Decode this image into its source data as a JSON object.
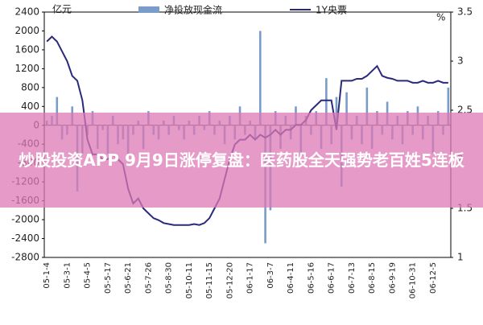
{
  "chart_data": {
    "type": "combo",
    "y_unit": "亿元",
    "y2_unit": "%",
    "categories": [
      "05-1-4",
      null,
      null,
      null,
      "05-3-1",
      null,
      null,
      null,
      "05-4-5",
      null,
      null,
      null,
      "05-5-17",
      null,
      null,
      null,
      "05-6-21",
      null,
      null,
      null,
      "05-7-26",
      null,
      null,
      null,
      "05-8-30",
      null,
      null,
      null,
      "05-10-11",
      null,
      null,
      null,
      "05-11-15",
      null,
      null,
      null,
      "05-12-20",
      null,
      null,
      null,
      "06-1-17",
      null,
      null,
      null,
      "06-3-7",
      null,
      null,
      null,
      "06-4-11",
      null,
      null,
      null,
      "06-5-16",
      null,
      null,
      null,
      "06-6-17",
      null,
      null,
      null,
      "06-7-13",
      null,
      null,
      null,
      "06-8-15",
      null,
      null,
      null,
      "06-9-19",
      null,
      null,
      null,
      "06-10-31",
      null,
      null,
      null,
      "06-12-5",
      null,
      null,
      null
    ],
    "series": [
      {
        "name": "净投放现金流",
        "type": "bar",
        "color": "#7a9cc8",
        "values": [
          100,
          200,
          600,
          -300,
          -200,
          400,
          -1400,
          -600,
          -200,
          300,
          -500,
          -100,
          -600,
          200,
          -400,
          -300,
          -600,
          -200,
          100,
          -500,
          300,
          -200,
          -300,
          100,
          -200,
          200,
          -100,
          -300,
          100,
          -200,
          200,
          -100,
          300,
          -200,
          100,
          -400,
          200,
          -300,
          400,
          -200,
          100,
          -300,
          2000,
          -2500,
          -1800,
          300,
          -500,
          200,
          -300,
          400,
          -600,
          200,
          -200,
          300,
          -500,
          1000,
          -400,
          600,
          -1300,
          700,
          -300,
          200,
          -400,
          800,
          -500,
          300,
          -200,
          500,
          -300,
          200,
          -400,
          300,
          -200,
          400,
          -300,
          200,
          -600,
          300,
          -200,
          800
        ]
      },
      {
        "name": "1Y央票",
        "type": "line",
        "axis": "y2",
        "color": "#2a2a7a",
        "values": [
          3.2,
          3.25,
          3.2,
          3.1,
          3.0,
          2.85,
          2.8,
          2.6,
          2.2,
          2.05,
          2.05,
          2.0,
          2.0,
          2.05,
          2.0,
          1.95,
          1.7,
          1.55,
          1.6,
          1.5,
          1.45,
          1.4,
          1.38,
          1.35,
          1.34,
          1.33,
          1.33,
          1.33,
          1.33,
          1.34,
          1.33,
          1.35,
          1.4,
          1.5,
          1.6,
          1.8,
          2.0,
          2.15,
          2.2,
          2.2,
          2.25,
          2.2,
          2.25,
          2.22,
          2.25,
          2.3,
          2.25,
          2.3,
          2.3,
          2.35,
          2.35,
          2.4,
          2.5,
          2.55,
          2.6,
          2.6,
          2.6,
          2.3,
          2.8,
          2.8,
          2.8,
          2.82,
          2.82,
          2.85,
          2.9,
          2.95,
          2.85,
          2.83,
          2.82,
          2.8,
          2.8,
          2.8,
          2.78,
          2.78,
          2.8,
          2.78,
          2.78,
          2.8,
          2.78,
          2.78
        ]
      }
    ],
    "ylim": [
      -2800,
      2400
    ],
    "yticks": [
      -2800,
      -2400,
      -2000,
      -1600,
      -1200,
      -800,
      -400,
      0,
      400,
      800,
      1200,
      1600,
      2000,
      2400
    ],
    "y2lim": [
      1,
      3.5
    ],
    "y2ticks": [
      1,
      1.5,
      2,
      2.5,
      3,
      3.5
    ]
  },
  "banner": {
    "title": "炒股投资APP 9月9日涨停复盘：医药股全天强势老百姓5连板"
  }
}
